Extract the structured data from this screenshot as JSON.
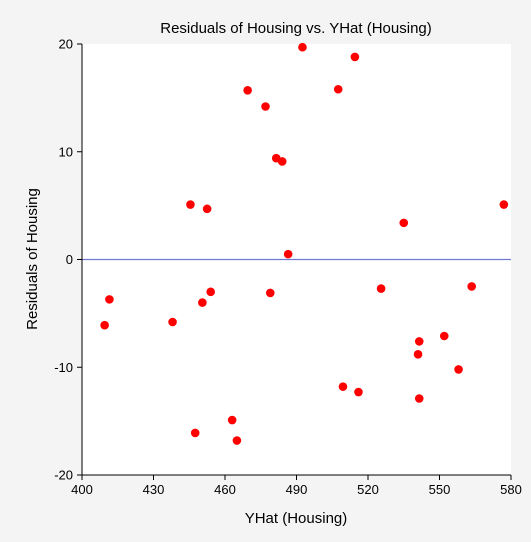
{
  "chart_data": {
    "type": "scatter",
    "title": "Residuals of Housing vs. YHat (Housing)",
    "xlabel": "YHat (Housing)",
    "ylabel": "Residuals of Housing",
    "xlim": [
      400,
      580
    ],
    "ylim": [
      -20,
      20
    ],
    "xticks": [
      "400",
      "430",
      "460",
      "490",
      "520",
      "550",
      "580"
    ],
    "yticks": [
      "20",
      "10",
      "0",
      "-10",
      "-20"
    ],
    "reference_line": 0,
    "grid": false,
    "colors": {
      "points": "#ff0000",
      "reference_line": "#6f7bd2",
      "axis": "#000000",
      "background": "#f4f4f4",
      "plot_background": "#ffffff"
    },
    "points": [
      {
        "x": 492.5,
        "y": 19.7
      },
      {
        "x": 514.5,
        "y": 18.8
      },
      {
        "x": 469.5,
        "y": 15.7
      },
      {
        "x": 507.5,
        "y": 15.8
      },
      {
        "x": 477.0,
        "y": 14.2
      },
      {
        "x": 481.5,
        "y": 9.4
      },
      {
        "x": 484.0,
        "y": 9.1
      },
      {
        "x": 445.5,
        "y": 5.1
      },
      {
        "x": 452.5,
        "y": 4.7
      },
      {
        "x": 535.0,
        "y": 3.4
      },
      {
        "x": 577.0,
        "y": 5.1
      },
      {
        "x": 486.5,
        "y": 0.5
      },
      {
        "x": 411.5,
        "y": -3.7
      },
      {
        "x": 409.5,
        "y": -6.1
      },
      {
        "x": 438.0,
        "y": -5.8
      },
      {
        "x": 454.0,
        "y": -3.0
      },
      {
        "x": 450.5,
        "y": -4.0
      },
      {
        "x": 479.0,
        "y": -3.1
      },
      {
        "x": 525.5,
        "y": -2.7
      },
      {
        "x": 563.5,
        "y": -2.5
      },
      {
        "x": 552.0,
        "y": -7.1
      },
      {
        "x": 541.5,
        "y": -7.6
      },
      {
        "x": 541.0,
        "y": -8.8
      },
      {
        "x": 558.0,
        "y": -10.2
      },
      {
        "x": 509.5,
        "y": -11.8
      },
      {
        "x": 516.0,
        "y": -12.3
      },
      {
        "x": 541.5,
        "y": -12.9
      },
      {
        "x": 447.5,
        "y": -16.1
      },
      {
        "x": 463.0,
        "y": -14.9
      },
      {
        "x": 465.0,
        "y": -16.8
      }
    ]
  }
}
